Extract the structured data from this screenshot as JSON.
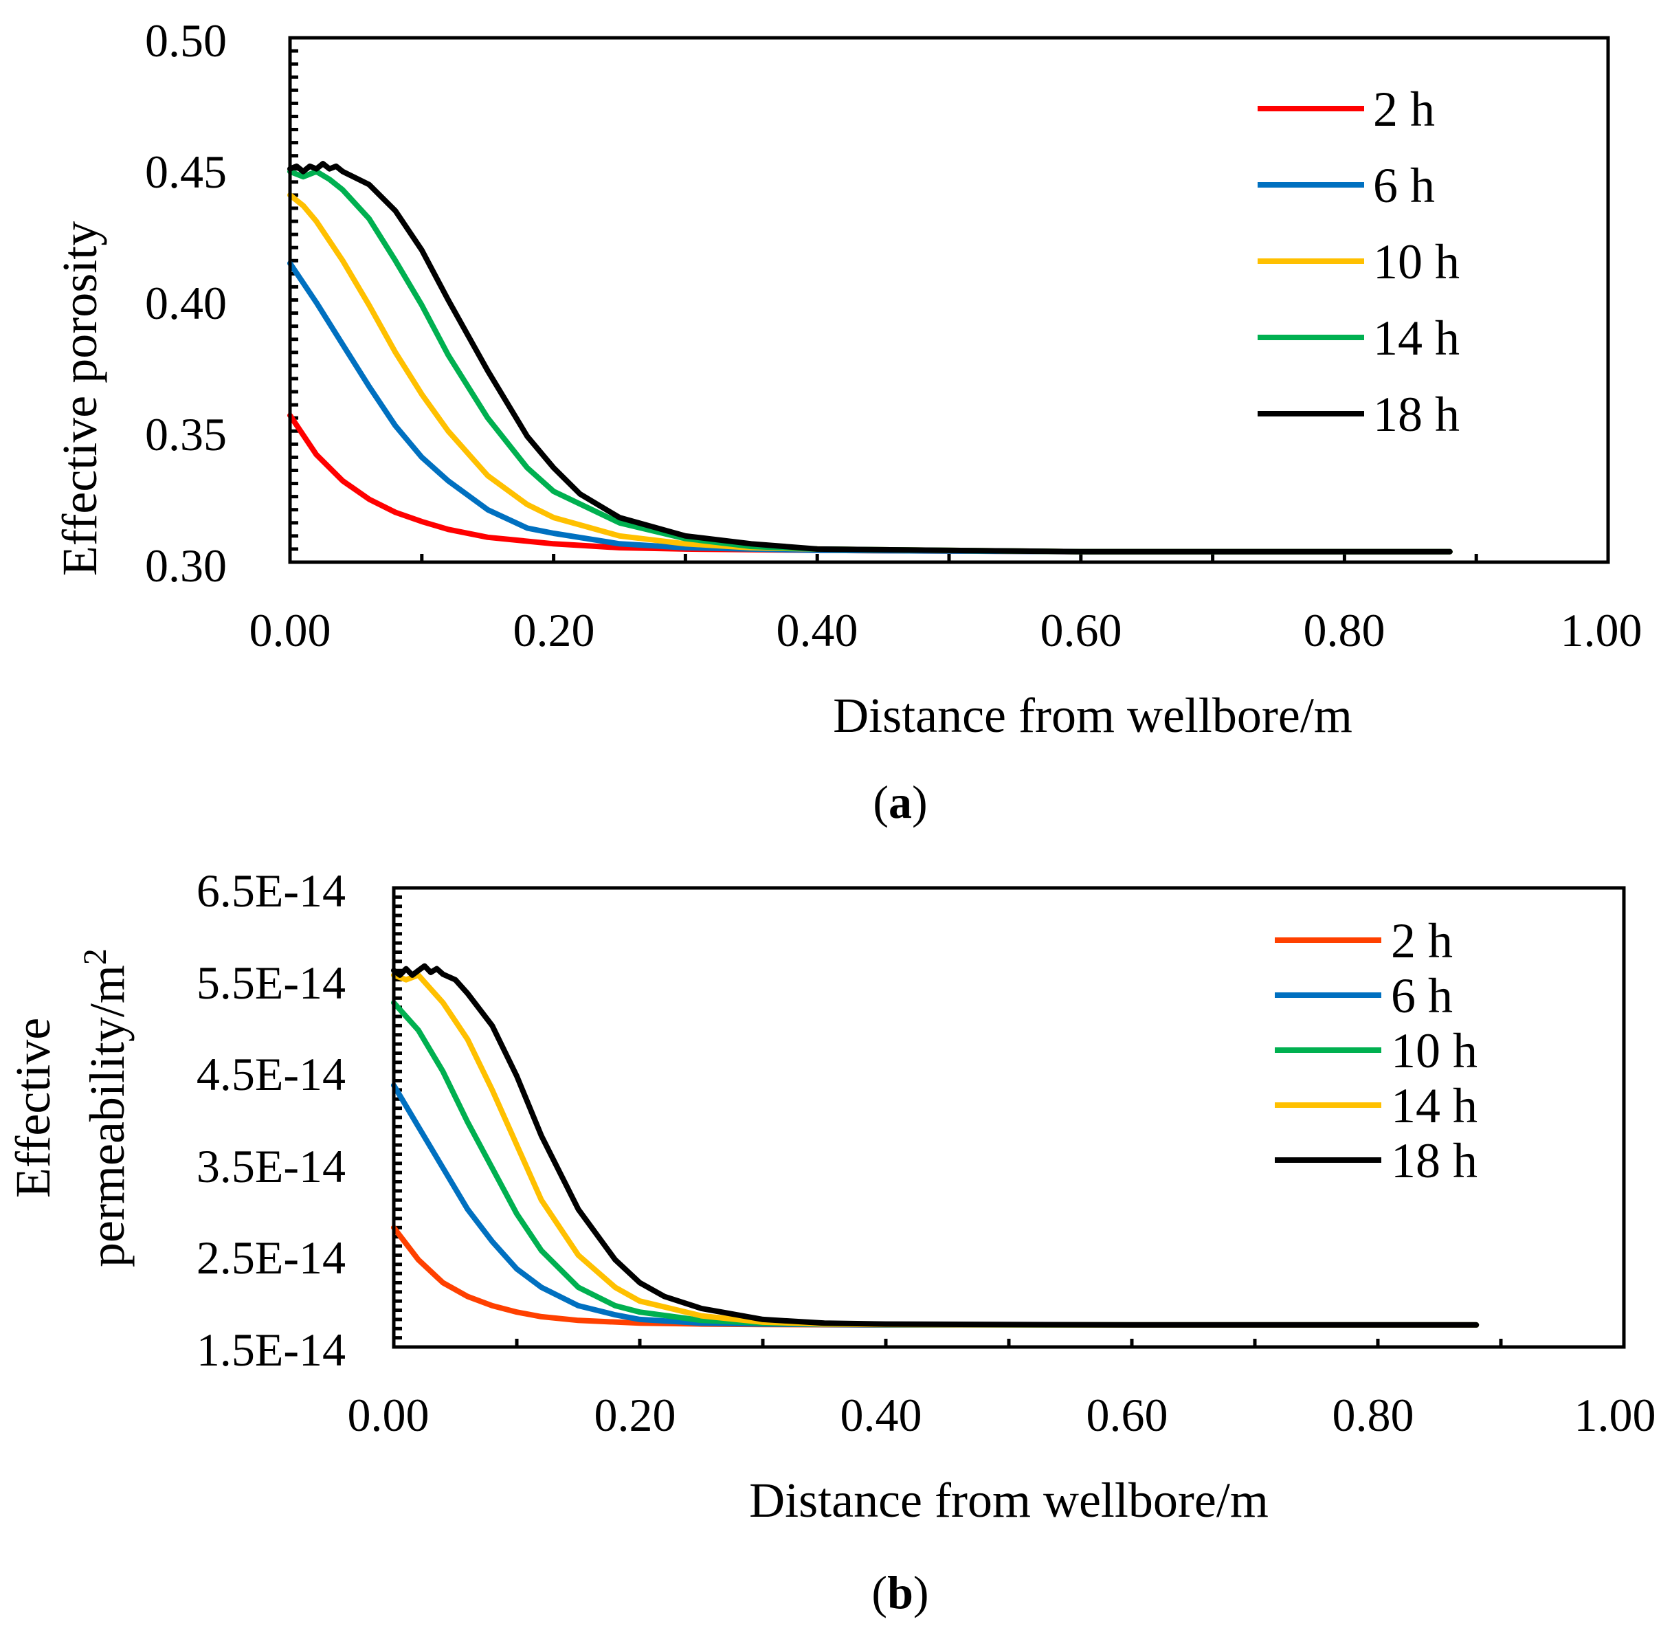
{
  "chart_data": [
    {
      "type": "line",
      "panel_label": "a",
      "xlabel": "Distance from wellbore/m",
      "ylabel": "Effective porosity",
      "xlim": [
        0.0,
        1.0
      ],
      "ylim": [
        0.3,
        0.5
      ],
      "xticks": [
        "0.00",
        "0.20",
        "0.40",
        "0.60",
        "0.80",
        "1.00"
      ],
      "yticks": [
        "0.50",
        "0.45",
        "0.40",
        "0.35",
        "0.30"
      ],
      "grid": false,
      "legend_position": "top-right",
      "series": [
        {
          "name": "2 h",
          "color": "#ff0000",
          "x": [
            0.0,
            0.02,
            0.04,
            0.06,
            0.08,
            0.1,
            0.12,
            0.15,
            0.2,
            0.25,
            0.3,
            0.4,
            0.6,
            0.88
          ],
          "y": [
            0.356,
            0.341,
            0.331,
            0.324,
            0.319,
            0.3155,
            0.3125,
            0.3095,
            0.307,
            0.3055,
            0.305,
            0.3045,
            0.304,
            0.304
          ]
        },
        {
          "name": "6 h",
          "color": "#0070c0",
          "x": [
            0.0,
            0.02,
            0.04,
            0.06,
            0.08,
            0.1,
            0.12,
            0.15,
            0.18,
            0.2,
            0.25,
            0.3,
            0.35,
            0.4,
            0.6,
            0.88
          ],
          "y": [
            0.414,
            0.399,
            0.383,
            0.367,
            0.352,
            0.34,
            0.331,
            0.32,
            0.313,
            0.311,
            0.307,
            0.3055,
            0.305,
            0.3045,
            0.304,
            0.304
          ]
        },
        {
          "name": "10 h",
          "color": "#ffc000",
          "x": [
            0.0,
            0.01,
            0.02,
            0.04,
            0.06,
            0.08,
            0.1,
            0.12,
            0.15,
            0.18,
            0.2,
            0.25,
            0.3,
            0.35,
            0.4,
            0.6,
            0.88
          ],
          "y": [
            0.44,
            0.436,
            0.43,
            0.415,
            0.398,
            0.38,
            0.364,
            0.35,
            0.333,
            0.322,
            0.317,
            0.31,
            0.307,
            0.3055,
            0.305,
            0.304,
            0.304
          ]
        },
        {
          "name": "14 h",
          "color": "#00b050",
          "x": [
            0.0,
            0.01,
            0.02,
            0.03,
            0.04,
            0.06,
            0.08,
            0.1,
            0.12,
            0.15,
            0.18,
            0.2,
            0.25,
            0.3,
            0.35,
            0.4,
            0.6,
            0.88
          ],
          "y": [
            0.449,
            0.447,
            0.449,
            0.446,
            0.442,
            0.431,
            0.415,
            0.398,
            0.379,
            0.355,
            0.336,
            0.327,
            0.315,
            0.309,
            0.306,
            0.305,
            0.304,
            0.304
          ]
        },
        {
          "name": "18 h",
          "color": "#000000",
          "x": [
            0.0,
            0.005,
            0.01,
            0.015,
            0.02,
            0.025,
            0.03,
            0.035,
            0.04,
            0.06,
            0.08,
            0.1,
            0.12,
            0.15,
            0.18,
            0.2,
            0.22,
            0.25,
            0.3,
            0.35,
            0.4,
            0.6,
            0.88
          ],
          "y": [
            0.45,
            0.451,
            0.449,
            0.451,
            0.45,
            0.452,
            0.45,
            0.451,
            0.449,
            0.444,
            0.434,
            0.419,
            0.4,
            0.373,
            0.348,
            0.336,
            0.326,
            0.317,
            0.31,
            0.307,
            0.305,
            0.304,
            0.304
          ]
        }
      ]
    },
    {
      "type": "line",
      "panel_label": "b",
      "xlabel": "Distance from wellbore/m",
      "ylabel_line1": "Effective",
      "ylabel_line2": "permeability/m",
      "ylabel_sup": "2",
      "xlim": [
        0.0,
        1.0
      ],
      "ylim": [
        1.5e-14,
        6.5e-14
      ],
      "xticks": [
        "0.00",
        "0.20",
        "0.40",
        "0.60",
        "0.80",
        "1.00"
      ],
      "yticks": [
        "6.5E-14",
        "5.5E-14",
        "4.5E-14",
        "3.5E-14",
        "2.5E-14",
        "1.5E-14"
      ],
      "grid": false,
      "legend_position": "top-right",
      "series": [
        {
          "name": "2 h",
          "color": "#ff4000",
          "x": [
            0.0,
            0.02,
            0.04,
            0.06,
            0.08,
            0.1,
            0.12,
            0.15,
            0.2,
            0.25,
            0.3,
            0.4,
            0.6,
            0.88
          ],
          "y": [
            2.8e-14,
            2.45e-14,
            2.2e-14,
            2.05e-14,
            1.95e-14,
            1.88e-14,
            1.83e-14,
            1.79e-14,
            1.76e-14,
            1.75e-14,
            1.745e-14,
            1.74e-14,
            1.74e-14,
            1.74e-14
          ]
        },
        {
          "name": "6 h",
          "color": "#0070c0",
          "x": [
            0.0,
            0.02,
            0.04,
            0.06,
            0.08,
            0.1,
            0.12,
            0.15,
            0.18,
            0.2,
            0.25,
            0.3,
            0.35,
            0.4,
            0.6,
            0.88
          ],
          "y": [
            4.35e-14,
            3.9e-14,
            3.45e-14,
            3e-14,
            2.65e-14,
            2.35e-14,
            2.15e-14,
            1.95e-14,
            1.85e-14,
            1.8e-14,
            1.76e-14,
            1.75e-14,
            1.745e-14,
            1.74e-14,
            1.74e-14,
            1.74e-14
          ]
        },
        {
          "name": "10 h",
          "color": "#00b050",
          "x": [
            0.0,
            0.02,
            0.04,
            0.06,
            0.08,
            0.1,
            0.12,
            0.15,
            0.18,
            0.2,
            0.25,
            0.3,
            0.35,
            0.4,
            0.6,
            0.88
          ],
          "y": [
            5.25e-14,
            4.95e-14,
            4.5e-14,
            3.95e-14,
            3.45e-14,
            2.95e-14,
            2.55e-14,
            2.15e-14,
            1.95e-14,
            1.88e-14,
            1.79e-14,
            1.76e-14,
            1.75e-14,
            1.745e-14,
            1.74e-14,
            1.74e-14
          ]
        },
        {
          "name": "14 h",
          "color": "#ffc000",
          "x": [
            0.0,
            0.01,
            0.02,
            0.03,
            0.04,
            0.06,
            0.08,
            0.1,
            0.12,
            0.15,
            0.18,
            0.2,
            0.25,
            0.3,
            0.35,
            0.4,
            0.6,
            0.88
          ],
          "y": [
            5.55e-14,
            5.5e-14,
            5.55e-14,
            5.4e-14,
            5.25e-14,
            4.85e-14,
            4.3e-14,
            3.7e-14,
            3.1e-14,
            2.5e-14,
            2.15e-14,
            2e-14,
            1.84e-14,
            1.77e-14,
            1.75e-14,
            1.745e-14,
            1.74e-14,
            1.74e-14
          ]
        },
        {
          "name": "18 h",
          "color": "#000000",
          "x": [
            0.0,
            0.005,
            0.01,
            0.015,
            0.02,
            0.025,
            0.03,
            0.035,
            0.04,
            0.05,
            0.06,
            0.08,
            0.1,
            0.12,
            0.15,
            0.18,
            0.2,
            0.22,
            0.25,
            0.3,
            0.35,
            0.4,
            0.6,
            0.88
          ],
          "y": [
            5.6e-14,
            5.55e-14,
            5.62e-14,
            5.55e-14,
            5.6e-14,
            5.65e-14,
            5.58e-14,
            5.62e-14,
            5.56e-14,
            5.5e-14,
            5.35e-14,
            5e-14,
            4.45e-14,
            3.8e-14,
            3e-14,
            2.45e-14,
            2.2e-14,
            2.05e-14,
            1.92e-14,
            1.8e-14,
            1.76e-14,
            1.75e-14,
            1.74e-14,
            1.74e-14
          ]
        }
      ]
    }
  ]
}
